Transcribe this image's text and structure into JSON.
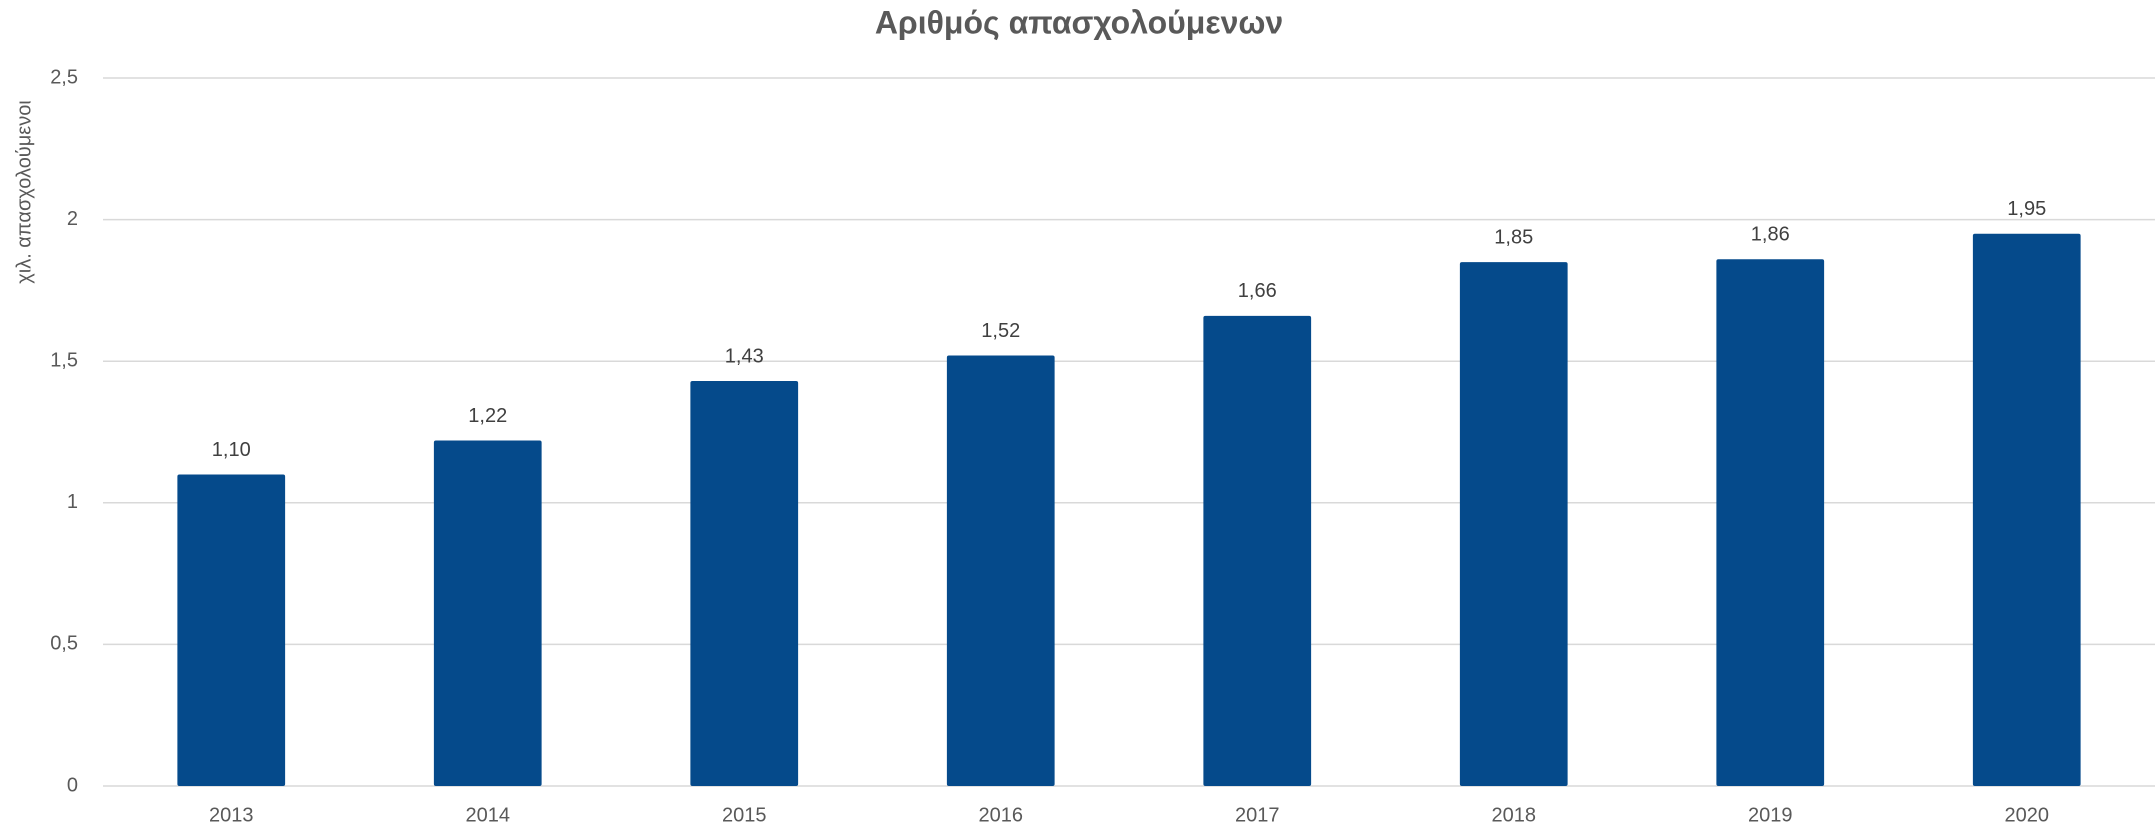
{
  "chart_data": {
    "type": "bar",
    "title": "Αριθμός απασχολούμενων",
    "y_label": "χιλ. απασχολούμενοι",
    "categories": [
      "2013",
      "2014",
      "2015",
      "2016",
      "2017",
      "2018",
      "2019",
      "2020"
    ],
    "values": [
      1.1,
      1.22,
      1.43,
      1.52,
      1.66,
      1.85,
      1.86,
      1.95
    ],
    "value_labels": [
      "1,10",
      "1,22",
      "1,43",
      "1,52",
      "1,66",
      "1,85",
      "1,86",
      "1,95"
    ],
    "color": "#054a8b",
    "ylim": [
      0,
      2.5
    ],
    "yticks": [
      0,
      {
        "value": 0.5,
        "label": "0,5"
      },
      1,
      {
        "value": 1.5,
        "label": "1,5"
      },
      2,
      {
        "value": 2.5,
        "label": "2,5"
      }
    ],
    "grid": true
  }
}
